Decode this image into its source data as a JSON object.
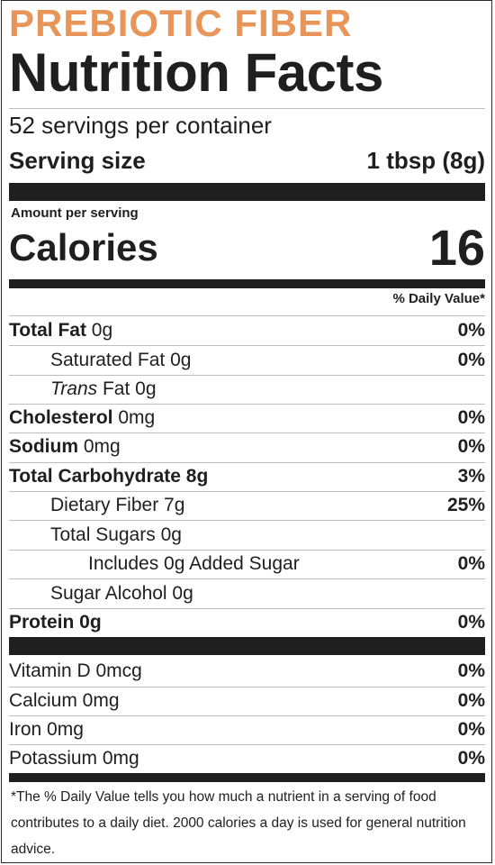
{
  "product_name": "PREBIOTIC FIBER",
  "title": "Nutrition Facts",
  "servings_per_container": "52 servings per container",
  "serving_size": {
    "label": "Serving size",
    "value": "1 tbsp (8g)"
  },
  "amount_per_serving": "Amount per serving",
  "calories": {
    "label": "Calories",
    "value": "16"
  },
  "daily_value_header": "% Daily Value*",
  "nutrients": [
    {
      "bold": "Total Fat",
      "rest": " 0g",
      "dv": "0%"
    },
    {
      "bold": "",
      "rest": "Saturated Fat 0g",
      "dv": "0%"
    },
    {
      "bold": "",
      "italic": "Trans",
      "rest": " Fat 0g",
      "dv": ""
    },
    {
      "bold": "Cholesterol",
      "rest": " 0mg",
      "dv": "0%"
    },
    {
      "bold": "Sodium",
      "rest": " 0mg",
      "dv": "0%"
    },
    {
      "bold": "Total Carbohydrate",
      "rest": " 8g",
      "dv": "3%"
    },
    {
      "bold": "",
      "rest": "Dietary Fiber 7g",
      "dv": "25%"
    },
    {
      "bold": "",
      "rest": "Total Sugars 0g",
      "dv": ""
    },
    {
      "bold": "",
      "rest": "Includes 0g Added Sugar",
      "dv": "0%"
    },
    {
      "bold": "",
      "rest": "Sugar Alcohol 0g",
      "dv": ""
    },
    {
      "bold": "Protein",
      "rest": " 0g",
      "dv": "0%"
    }
  ],
  "vitamins": [
    {
      "name": "Vitamin D 0mcg",
      "dv": "0%"
    },
    {
      "name": "Calcium 0mg",
      "dv": "0%"
    },
    {
      "name": "Iron 0mg",
      "dv": "0%"
    },
    {
      "name": "Potassium 0mg",
      "dv": "0%"
    }
  ],
  "footnote": "*The % Daily Value tells you how much a nutrient in a serving of food contributes to a daily diet. 2000 calories a day is used for general nutrition advice.",
  "colors": {
    "product_name": "#e8955a",
    "ink": "#1f1f1f"
  }
}
